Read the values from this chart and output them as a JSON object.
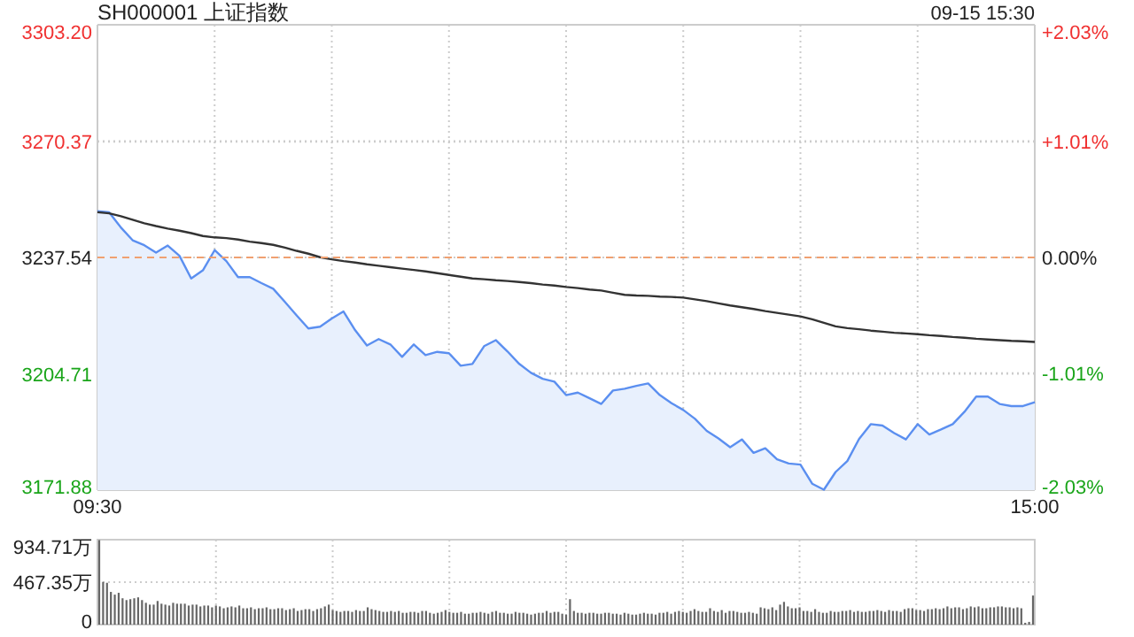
{
  "chart_data": [
    {
      "type": "line",
      "title": "SH000001 上证指数",
      "subtitle": "09-15 15:30",
      "categories": [
        "09:30",
        null,
        null,
        null,
        null,
        null,
        null,
        null,
        null,
        null,
        null,
        null,
        null,
        null,
        null,
        null,
        null,
        null,
        null,
        null,
        null,
        null,
        null,
        null,
        null,
        null,
        null,
        null,
        null,
        null,
        null,
        null,
        null,
        null,
        null,
        null,
        null,
        null,
        null,
        null,
        null,
        null,
        null,
        null,
        null,
        null,
        null,
        null,
        null,
        null,
        null,
        null,
        null,
        null,
        null,
        null,
        null,
        null,
        null,
        null,
        null,
        null,
        null,
        null,
        null,
        null,
        null,
        null,
        null,
        null,
        null,
        null,
        null,
        null,
        null,
        null,
        null,
        null,
        null,
        null,
        "15:00"
      ],
      "ylim": [
        3171.88,
        3303.2
      ],
      "yticks": [
        {
          "value": 3171.88,
          "label": "3171.88"
        },
        {
          "value": 3204.71,
          "label": "3204.71"
        },
        {
          "value": 3237.54,
          "label": "3237.54"
        },
        {
          "value": 3270.37,
          "label": "3270.37"
        },
        {
          "value": 3303.2,
          "label": "3303.20"
        }
      ],
      "y2lim": [
        -2.03,
        2.03
      ],
      "y2ticks": [
        {
          "value": -2.03,
          "label": "-2.03%"
        },
        {
          "value": -1.01,
          "label": "-1.01%"
        },
        {
          "value": 0,
          "label": "0.00%"
        },
        {
          "value": 1.01,
          "label": "+1.01%"
        },
        {
          "value": 2.03,
          "label": "+2.03%"
        }
      ],
      "grid": true,
      "ref_lines": [
        {
          "axis": "y",
          "value": 3237.54,
          "color": "#f0a070",
          "line_style": "dashed"
        }
      ],
      "series": [
        {
          "type": "area",
          "color": "#5b8ff0",
          "values": [
            3250.6,
            3250.3,
            3246.0,
            3242.4,
            3241.0,
            3238.9,
            3240.9,
            3238.0,
            3231.6,
            3233.9,
            3239.6,
            3236.5,
            3232.0,
            3232.0,
            3230.3,
            3228.7,
            3225.0,
            3221.2,
            3217.5,
            3218.0,
            3220.3,
            3222.3,
            3217.0,
            3212.7,
            3214.5,
            3213.0,
            3209.5,
            3213.0,
            3210.0,
            3210.9,
            3210.5,
            3207.0,
            3207.5,
            3212.5,
            3214.2,
            3211.0,
            3207.5,
            3205.0,
            3203.3,
            3202.5,
            3198.7,
            3199.4,
            3197.8,
            3196.2,
            3200.0,
            3200.5,
            3201.3,
            3202.0,
            3198.7,
            3196.4,
            3194.5,
            3192.0,
            3188.6,
            3186.5,
            3184.0,
            3186.2,
            3182.4,
            3183.7,
            3180.6,
            3179.4,
            3179.1,
            3173.7,
            3172.0,
            3177.0,
            3180.1,
            3186.3,
            3190.5,
            3190.1,
            3188.0,
            3186.2,
            3190.5,
            3187.6,
            3189.0,
            3190.5,
            3194.0,
            3198.3,
            3198.3,
            3196.2,
            3195.6,
            3195.6,
            3196.7
          ]
        },
        {
          "type": "line",
          "color": "#333333",
          "values": [
            3250.3,
            3250.0,
            3249.2,
            3248.2,
            3247.2,
            3246.4,
            3245.7,
            3245.1,
            3244.4,
            3243.6,
            3243.2,
            3243.0,
            3242.6,
            3242.0,
            3241.6,
            3241.1,
            3240.3,
            3239.4,
            3238.6,
            3237.6,
            3237.0,
            3236.5,
            3236.1,
            3235.6,
            3235.2,
            3234.8,
            3234.4,
            3234.0,
            3233.6,
            3233.1,
            3232.6,
            3232.1,
            3231.6,
            3231.4,
            3231.1,
            3230.9,
            3230.6,
            3230.3,
            3229.9,
            3229.6,
            3229.2,
            3228.9,
            3228.5,
            3228.2,
            3227.6,
            3227.0,
            3226.8,
            3226.7,
            3226.5,
            3226.4,
            3226.2,
            3225.7,
            3225.2,
            3224.6,
            3224.0,
            3223.5,
            3223.0,
            3222.4,
            3221.9,
            3221.4,
            3220.9,
            3220.1,
            3219.1,
            3218.1,
            3217.6,
            3217.3,
            3216.9,
            3216.6,
            3216.3,
            3216.1,
            3215.9,
            3215.6,
            3215.4,
            3215.1,
            3214.9,
            3214.6,
            3214.4,
            3214.2,
            3214.0,
            3213.9,
            3213.7
          ]
        }
      ]
    },
    {
      "type": "bar",
      "color": "#666666",
      "grid": true,
      "categories": [
        null,
        null,
        null,
        null,
        null,
        null,
        null,
        null,
        null,
        null,
        null,
        null,
        null,
        null,
        null,
        null,
        null,
        null,
        null,
        null,
        null,
        null,
        null,
        null,
        null,
        null,
        null,
        null,
        null,
        null,
        null,
        null,
        null,
        null,
        null,
        null,
        null,
        null,
        null,
        null,
        null,
        null,
        null,
        null,
        null,
        null,
        null,
        null,
        null,
        null,
        null,
        null,
        null,
        null,
        null,
        null,
        null,
        null,
        null,
        null,
        null,
        null,
        null,
        null,
        null,
        null,
        null,
        null,
        null,
        null,
        null,
        null,
        null,
        null,
        null,
        null,
        null,
        null,
        null,
        null,
        null,
        null,
        null,
        null,
        null,
        null,
        null,
        null,
        null,
        null,
        null,
        null,
        null,
        null,
        null,
        null,
        null,
        null,
        null,
        null,
        null,
        null,
        null,
        null,
        null,
        null,
        null,
        null,
        null,
        null,
        null,
        null,
        null,
        null,
        null,
        null,
        null,
        null,
        null,
        null,
        null,
        null,
        null,
        null,
        null,
        null,
        null,
        null,
        null,
        null,
        null,
        null,
        null,
        null,
        null,
        null,
        null,
        null,
        null,
        null,
        null,
        null,
        null,
        null,
        null,
        null,
        null,
        null,
        null,
        null,
        null,
        null,
        null,
        null,
        null,
        null,
        null,
        null,
        null,
        null,
        null,
        null,
        null,
        null,
        null,
        null,
        null,
        null,
        null,
        null,
        null,
        null,
        null,
        null,
        null,
        null,
        null,
        null,
        null,
        null,
        null,
        null,
        null,
        null,
        null,
        null,
        null,
        null,
        null,
        null,
        null,
        null,
        null,
        null,
        null,
        null,
        null,
        null,
        null,
        null,
        null,
        null,
        null,
        null,
        null,
        null,
        null,
        null,
        null,
        null,
        null,
        null,
        null,
        null,
        null,
        null,
        null,
        null,
        null,
        null,
        null,
        null,
        null,
        null,
        null,
        null,
        null,
        null,
        null,
        null,
        null,
        null,
        null,
        null,
        null,
        null,
        null,
        null,
        null,
        null,
        null
      ],
      "values": [
        930,
        470,
        460,
        360,
        330,
        350,
        290,
        270,
        280,
        290,
        300,
        270,
        240,
        220,
        220,
        260,
        230,
        220,
        210,
        240,
        230,
        230,
        230,
        210,
        220,
        220,
        200,
        210,
        210,
        190,
        210,
        200,
        180,
        190,
        200,
        190,
        210,
        180,
        180,
        190,
        170,
        180,
        180,
        190,
        170,
        170,
        180,
        180,
        160,
        170,
        180,
        150,
        160,
        170,
        170,
        150,
        170,
        180,
        200,
        220,
        160,
        150,
        140,
        150,
        150,
        140,
        160,
        150,
        150,
        190,
        170,
        160,
        150,
        140,
        140,
        150,
        140,
        150,
        130,
        130,
        140,
        140,
        130,
        150,
        150,
        130,
        120,
        130,
        140,
        160,
        140,
        130,
        130,
        140,
        120,
        120,
        130,
        130,
        140,
        130,
        120,
        140,
        150,
        130,
        130,
        120,
        120,
        140,
        130,
        130,
        120,
        110,
        120,
        130,
        130,
        150,
        130,
        140,
        140,
        120,
        110,
        280,
        150,
        130,
        130,
        120,
        130,
        130,
        120,
        120,
        130,
        130,
        120,
        120,
        110,
        130,
        120,
        110,
        110,
        120,
        130,
        120,
        120,
        110,
        130,
        130,
        140,
        120,
        140,
        150,
        140,
        130,
        150,
        170,
        150,
        140,
        140,
        180,
        150,
        140,
        160,
        130,
        150,
        150,
        140,
        130,
        130,
        140,
        130,
        120,
        190,
        180,
        170,
        190,
        160,
        220,
        250,
        200,
        180,
        180,
        190,
        150,
        150,
        140,
        170,
        140,
        130,
        130,
        150,
        140,
        140,
        150,
        150,
        160,
        140,
        150,
        140,
        140,
        150,
        150,
        160,
        150,
        140,
        160,
        150,
        150,
        140,
        170,
        180,
        180,
        160,
        160,
        150,
        170,
        170,
        180,
        170,
        180,
        200,
        180,
        190,
        190,
        170,
        180,
        200,
        190,
        200,
        180,
        180,
        190,
        190,
        200,
        200,
        190,
        190,
        180,
        190,
        180,
        20,
        30,
        320
      ],
      "ylim": [
        0,
        934.71
      ],
      "yticks": [
        0,
        {
          "value": 467.35,
          "label": "467.35万"
        },
        {
          "value": 934.71,
          "label": "934.71万"
        }
      ]
    }
  ]
}
